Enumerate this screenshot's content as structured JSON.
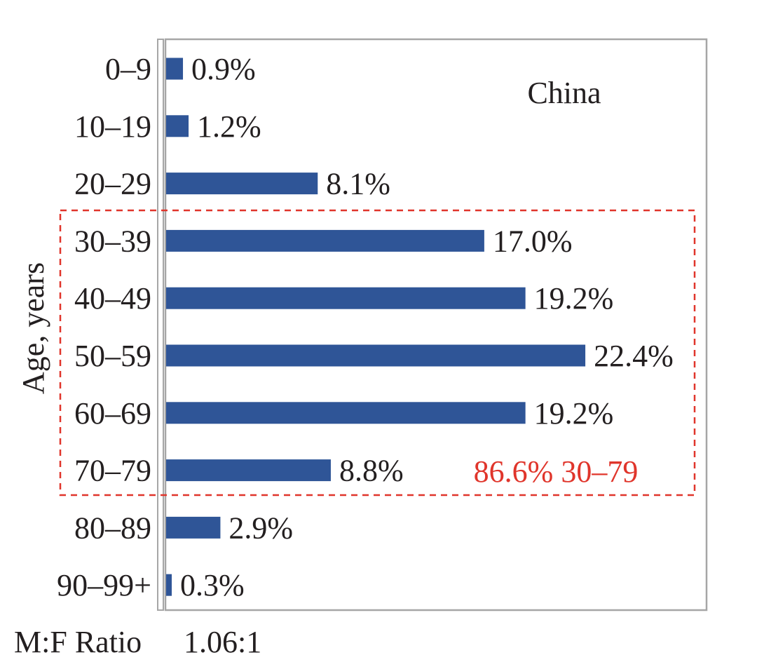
{
  "chart_data": {
    "type": "bar",
    "orientation": "horizontal",
    "title": "China",
    "ylabel": "Age, years",
    "xlabel": "",
    "categories": [
      "0–9",
      "10–19",
      "20–29",
      "30–39",
      "40–49",
      "50–59",
      "60–69",
      "70–79",
      "80–89",
      "90–99+"
    ],
    "values": [
      0.9,
      1.2,
      8.1,
      17.0,
      19.2,
      22.4,
      19.2,
      8.8,
      2.9,
      0.3
    ],
    "value_labels": [
      "0.9%",
      "1.2%",
      "8.1%",
      "17.0%",
      "19.2%",
      "22.4%",
      "19.2%",
      "8.8%",
      "2.9%",
      "0.3%"
    ],
    "xlim": [
      0,
      25
    ],
    "grid": false,
    "legend": "none",
    "bar_color": "#2f5597",
    "highlight": {
      "range": [
        "30–39",
        "70–79"
      ],
      "label": "86.6% 30–79",
      "color": "#e0352b",
      "style": "dashed"
    },
    "footer": {
      "label": "M:F Ratio",
      "value": "1.06:1"
    }
  }
}
